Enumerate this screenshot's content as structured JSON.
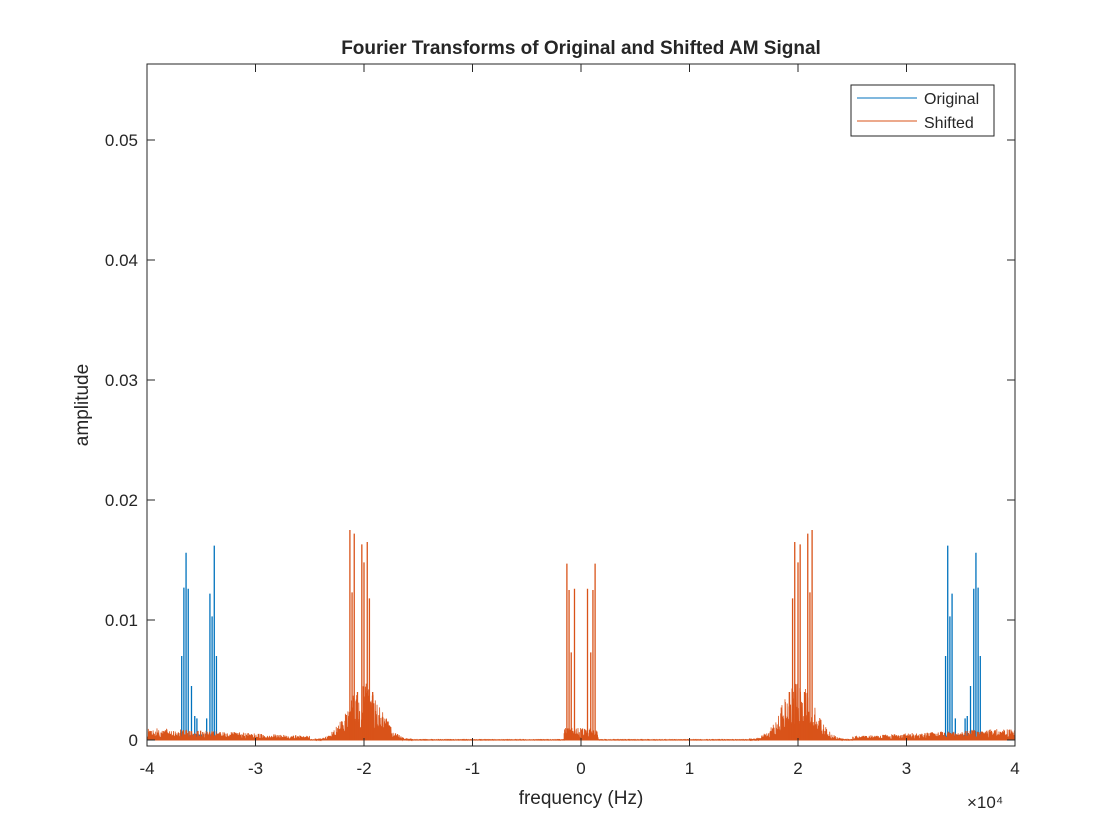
{
  "chart_data": {
    "type": "line",
    "title": "Fourier Transforms of Original and Shifted AM Signal",
    "xlabel": "frequency (Hz)",
    "ylabel": "amplitude",
    "x_exponent": "×10⁴",
    "xlim": [
      -40000,
      40000
    ],
    "ylim": [
      0,
      0.056
    ],
    "x_ticks": [
      -40000,
      -30000,
      -20000,
      -10000,
      0,
      10000,
      20000,
      30000,
      40000
    ],
    "x_tick_labels": [
      "-4",
      "-3",
      "-2",
      "-1",
      "0",
      "1",
      "2",
      "3",
      "4"
    ],
    "y_ticks": [
      0,
      0.01,
      0.02,
      0.03,
      0.04,
      0.05
    ],
    "y_tick_labels": [
      "0",
      "0.01",
      "0.02",
      "0.03",
      "0.04",
      "0.05"
    ],
    "legend_position": "top-right",
    "grid": false,
    "series": [
      {
        "name": "Original",
        "color": "#0072BD",
        "spikes": [
          {
            "x": -36800,
            "y": 0.007
          },
          {
            "x": -36600,
            "y": 0.0127
          },
          {
            "x": -36400,
            "y": 0.0156
          },
          {
            "x": -36200,
            "y": 0.0126
          },
          {
            "x": -35900,
            "y": 0.0045
          },
          {
            "x": -35600,
            "y": 0.002
          },
          {
            "x": -35400,
            "y": 0.0018
          },
          {
            "x": -34500,
            "y": 0.0018
          },
          {
            "x": -34200,
            "y": 0.0122
          },
          {
            "x": -34000,
            "y": 0.0103
          },
          {
            "x": -33800,
            "y": 0.0162
          },
          {
            "x": -33600,
            "y": 0.007
          },
          {
            "x": 33600,
            "y": 0.007
          },
          {
            "x": 33800,
            "y": 0.0162
          },
          {
            "x": 34000,
            "y": 0.0103
          },
          {
            "x": 34200,
            "y": 0.0122
          },
          {
            "x": 34500,
            "y": 0.0018
          },
          {
            "x": 35400,
            "y": 0.0018
          },
          {
            "x": 35600,
            "y": 0.002
          },
          {
            "x": 35900,
            "y": 0.0045
          },
          {
            "x": 36200,
            "y": 0.0126
          },
          {
            "x": 36400,
            "y": 0.0156
          },
          {
            "x": 36600,
            "y": 0.0127
          },
          {
            "x": 36800,
            "y": 0.007
          }
        ]
      },
      {
        "name": "Shifted",
        "color": "#D95319",
        "spikes": [
          {
            "x": -21300,
            "y": 0.0175
          },
          {
            "x": -21100,
            "y": 0.0123
          },
          {
            "x": -20900,
            "y": 0.0172
          },
          {
            "x": -20600,
            "y": 0.004
          },
          {
            "x": -20200,
            "y": 0.0163
          },
          {
            "x": -20000,
            "y": 0.0148
          },
          {
            "x": -19700,
            "y": 0.0165
          },
          {
            "x": -19500,
            "y": 0.0118
          },
          {
            "x": -19200,
            "y": 0.004
          },
          {
            "x": -1300,
            "y": 0.0147
          },
          {
            "x": -1100,
            "y": 0.0125
          },
          {
            "x": -900,
            "y": 0.0073
          },
          {
            "x": -600,
            "y": 0.0126
          },
          {
            "x": 600,
            "y": 0.0126
          },
          {
            "x": 900,
            "y": 0.0073
          },
          {
            "x": 1100,
            "y": 0.0125
          },
          {
            "x": 1300,
            "y": 0.0147
          },
          {
            "x": 19200,
            "y": 0.004
          },
          {
            "x": 19500,
            "y": 0.0118
          },
          {
            "x": 19700,
            "y": 0.0165
          },
          {
            "x": 20000,
            "y": 0.0148
          },
          {
            "x": 20200,
            "y": 0.0163
          },
          {
            "x": 20600,
            "y": 0.004
          },
          {
            "x": 20900,
            "y": 0.0172
          },
          {
            "x": 21100,
            "y": 0.0123
          },
          {
            "x": 21300,
            "y": 0.0175
          }
        ]
      }
    ]
  }
}
